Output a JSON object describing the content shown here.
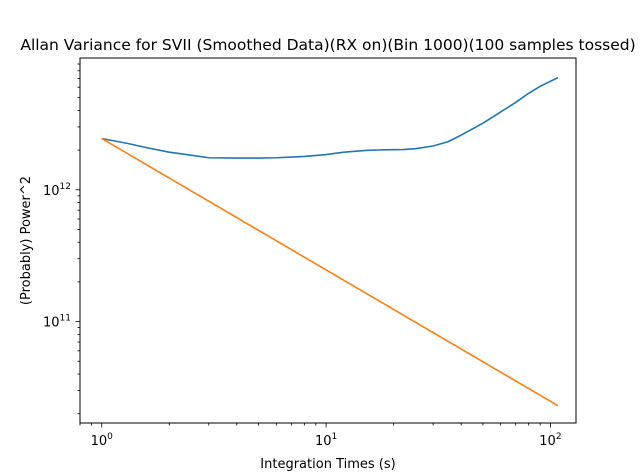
{
  "chart_data": {
    "type": "line",
    "title": "Allan Variance for SVII (Smoothed Data)(RX on)(Bin 1000)(100 samples tossed)",
    "xlabel": "Integration Times (s)",
    "ylabel": "(Probably) Power^2",
    "xscale": "log",
    "yscale": "log",
    "xlim": [
      0.8,
      130
    ],
    "ylim": [
      17000000000.0,
      10000000000000.0
    ],
    "grid": false,
    "legend": "none",
    "x_ticks": [
      {
        "value": 1,
        "base": "10",
        "exp": "0"
      },
      {
        "value": 10,
        "base": "10",
        "exp": "1"
      },
      {
        "value": 100,
        "base": "10",
        "exp": "2"
      }
    ],
    "y_ticks": [
      {
        "value": 100000000000.0,
        "base": "10",
        "exp": "11"
      },
      {
        "value": 1000000000000.0,
        "base": "10",
        "exp": "12"
      }
    ],
    "series": [
      {
        "color": "#1f77b4",
        "x": [
          1,
          1.3,
          1.6,
          2,
          2.5,
          3,
          4,
          5,
          6,
          7,
          8,
          10,
          12,
          15,
          18,
          22,
          25,
          30,
          35,
          40,
          50,
          60,
          70,
          80,
          90,
          108
        ],
        "y": [
          2450000000000.0,
          2250000000000.0,
          2080000000000.0,
          1930000000000.0,
          1830000000000.0,
          1750000000000.0,
          1740000000000.0,
          1740000000000.0,
          1750000000000.0,
          1770000000000.0,
          1790000000000.0,
          1850000000000.0,
          1930000000000.0,
          1990000000000.0,
          2010000000000.0,
          2020000000000.0,
          2050000000000.0,
          2150000000000.0,
          2320000000000.0,
          2600000000000.0,
          3200000000000.0,
          3900000000000.0,
          4600000000000.0,
          5400000000000.0,
          6100000000000.0,
          7100000000000.0
        ]
      },
      {
        "color": "#ff7f0e",
        "x": [
          1,
          108
        ],
        "y": [
          2450000000000.0,
          23000000000.0
        ]
      }
    ]
  }
}
